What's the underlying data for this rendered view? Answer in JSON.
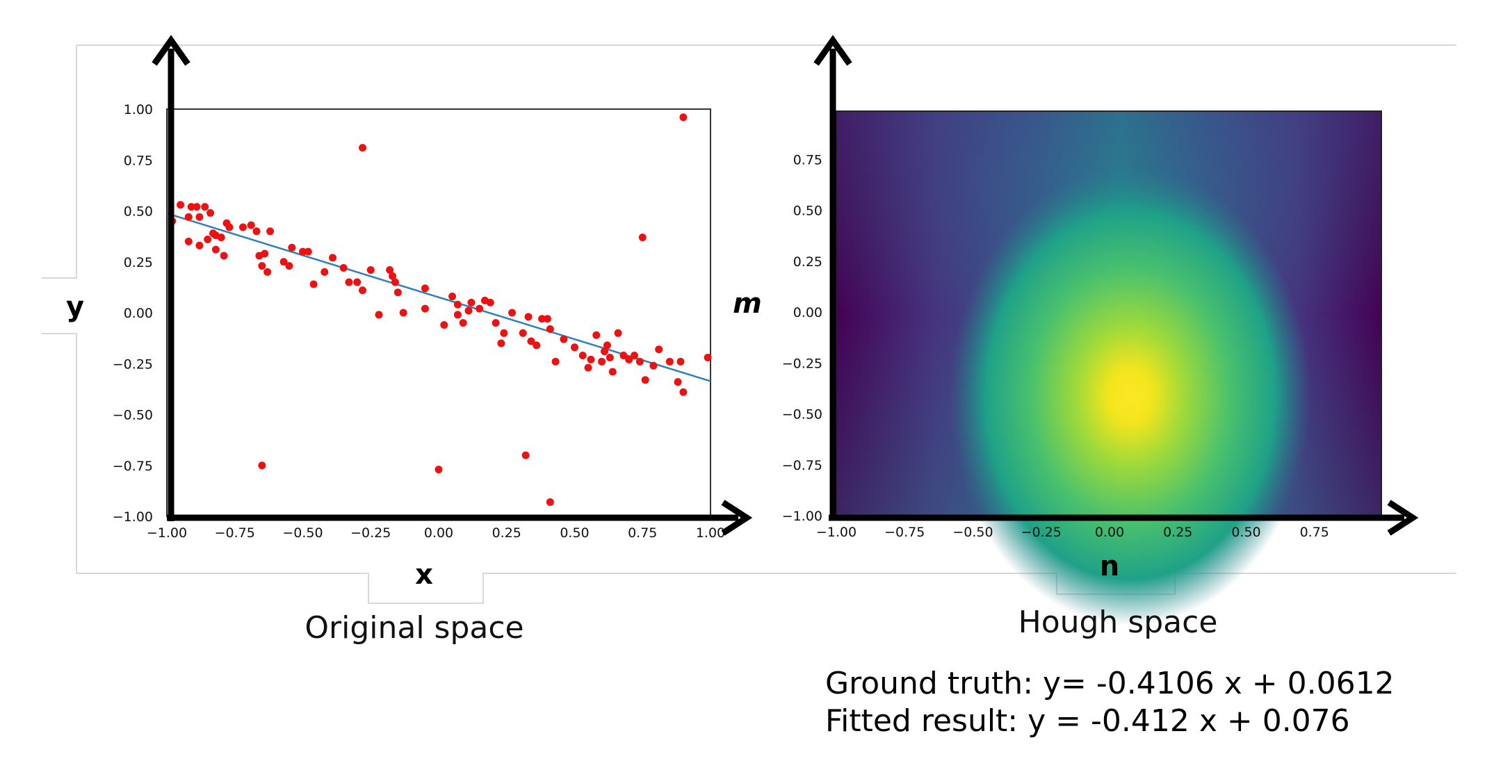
{
  "chart_data": [
    {
      "type": "scatter",
      "title": "",
      "xlabel": "x",
      "ylabel": "y",
      "caption": "Original space",
      "xlim": [
        -1.0,
        1.0
      ],
      "ylim": [
        -1.0,
        1.0
      ],
      "xticks": [
        "−1.00",
        "−0.75",
        "−0.50",
        "−0.25",
        "0.00",
        "0.25",
        "0.50",
        "0.75",
        "1.00"
      ],
      "yticks": [
        "−1.00",
        "−0.75",
        "−0.50",
        "−0.25",
        "0.00",
        "0.25",
        "0.50",
        "0.75",
        "1.00"
      ],
      "point_color": "#ee1111",
      "line_color": "#2f7fbf",
      "fitted_line": {
        "slope": -0.412,
        "intercept": 0.076
      },
      "points": [
        [
          -0.98,
          0.45
        ],
        [
          -0.95,
          0.53
        ],
        [
          -0.92,
          0.47
        ],
        [
          -0.92,
          0.35
        ],
        [
          -0.91,
          0.52
        ],
        [
          -0.89,
          0.52
        ],
        [
          -0.88,
          0.47
        ],
        [
          -0.88,
          0.33
        ],
        [
          -0.86,
          0.52
        ],
        [
          -0.85,
          0.36
        ],
        [
          -0.84,
          0.49
        ],
        [
          -0.83,
          0.39
        ],
        [
          -0.82,
          0.31
        ],
        [
          -0.82,
          0.38
        ],
        [
          -0.8,
          0.37
        ],
        [
          -0.79,
          0.28
        ],
        [
          -0.78,
          0.44
        ],
        [
          -0.77,
          0.42
        ],
        [
          -0.72,
          0.42
        ],
        [
          -0.69,
          0.43
        ],
        [
          -0.67,
          0.4
        ],
        [
          -0.66,
          0.28
        ],
        [
          -0.65,
          0.23
        ],
        [
          -0.64,
          0.29
        ],
        [
          -0.63,
          0.2
        ],
        [
          -0.62,
          0.4
        ],
        [
          -0.57,
          0.25
        ],
        [
          -0.55,
          0.23
        ],
        [
          -0.54,
          0.32
        ],
        [
          -0.5,
          0.3
        ],
        [
          -0.48,
          0.3
        ],
        [
          -0.46,
          0.14
        ],
        [
          -0.42,
          0.2
        ],
        [
          -0.39,
          0.27
        ],
        [
          -0.35,
          0.22
        ],
        [
          -0.33,
          0.15
        ],
        [
          -0.3,
          0.15
        ],
        [
          -0.28,
          0.11
        ],
        [
          -0.25,
          0.21
        ],
        [
          -0.22,
          -0.01
        ],
        [
          -0.18,
          0.21
        ],
        [
          -0.17,
          0.18
        ],
        [
          -0.16,
          0.15
        ],
        [
          -0.15,
          0.1
        ],
        [
          -0.13,
          0.0
        ],
        [
          -0.05,
          0.12
        ],
        [
          -0.05,
          0.02
        ],
        [
          0.02,
          -0.06
        ],
        [
          0.05,
          0.08
        ],
        [
          0.07,
          0.04
        ],
        [
          0.07,
          -0.01
        ],
        [
          0.09,
          -0.05
        ],
        [
          0.11,
          0.01
        ],
        [
          0.12,
          0.05
        ],
        [
          0.15,
          0.02
        ],
        [
          0.17,
          0.06
        ],
        [
          0.19,
          0.05
        ],
        [
          0.21,
          -0.05
        ],
        [
          0.23,
          -0.15
        ],
        [
          0.24,
          -0.1
        ],
        [
          0.27,
          0.0
        ],
        [
          0.31,
          -0.1
        ],
        [
          0.33,
          -0.02
        ],
        [
          0.34,
          -0.14
        ],
        [
          0.36,
          -0.16
        ],
        [
          0.38,
          -0.03
        ],
        [
          0.4,
          -0.03
        ],
        [
          0.41,
          -0.08
        ],
        [
          0.43,
          -0.24
        ],
        [
          0.46,
          -0.13
        ],
        [
          0.5,
          -0.17
        ],
        [
          0.53,
          -0.21
        ],
        [
          0.55,
          -0.27
        ],
        [
          0.56,
          -0.23
        ],
        [
          0.58,
          -0.11
        ],
        [
          0.6,
          -0.24
        ],
        [
          0.61,
          -0.19
        ],
        [
          0.62,
          -0.16
        ],
        [
          0.63,
          -0.22
        ],
        [
          0.64,
          -0.29
        ],
        [
          0.66,
          -0.1
        ],
        [
          0.68,
          -0.21
        ],
        [
          0.7,
          -0.23
        ],
        [
          0.72,
          -0.21
        ],
        [
          0.74,
          -0.24
        ],
        [
          0.76,
          -0.33
        ],
        [
          0.79,
          -0.26
        ],
        [
          0.81,
          -0.18
        ],
        [
          0.85,
          -0.24
        ],
        [
          0.88,
          -0.34
        ],
        [
          0.89,
          -0.24
        ],
        [
          0.9,
          -0.39
        ],
        [
          0.99,
          -0.22
        ],
        [
          -0.28,
          0.81
        ],
        [
          0.9,
          0.96
        ],
        [
          0.75,
          0.37
        ],
        [
          -0.65,
          -0.75
        ],
        [
          0.0,
          -0.77
        ],
        [
          0.32,
          -0.7
        ],
        [
          0.41,
          -0.93
        ]
      ]
    },
    {
      "type": "heatmap",
      "title": "",
      "xlabel": "n",
      "ylabel": "m",
      "caption": "Hough space",
      "xlim": [
        -1.0,
        1.0
      ],
      "ylim": [
        -1.0,
        1.0
      ],
      "xticks": [
        "−1.00",
        "−0.75",
        "−0.50",
        "−0.25",
        "0.00",
        "0.25",
        "0.50",
        "0.75"
      ],
      "yticks": [
        "−1.00",
        "−0.75",
        "−0.50",
        "−0.25",
        "0.00",
        "0.25",
        "0.50",
        "0.75"
      ],
      "colormap": "viridis",
      "peak": {
        "n": 0.076,
        "m": -0.412
      }
    }
  ],
  "results": {
    "ground_truth": "Ground truth: y= -0.4106 x + 0.0612",
    "fitted": "Fitted result:  y = -0.412 x + 0.076"
  }
}
